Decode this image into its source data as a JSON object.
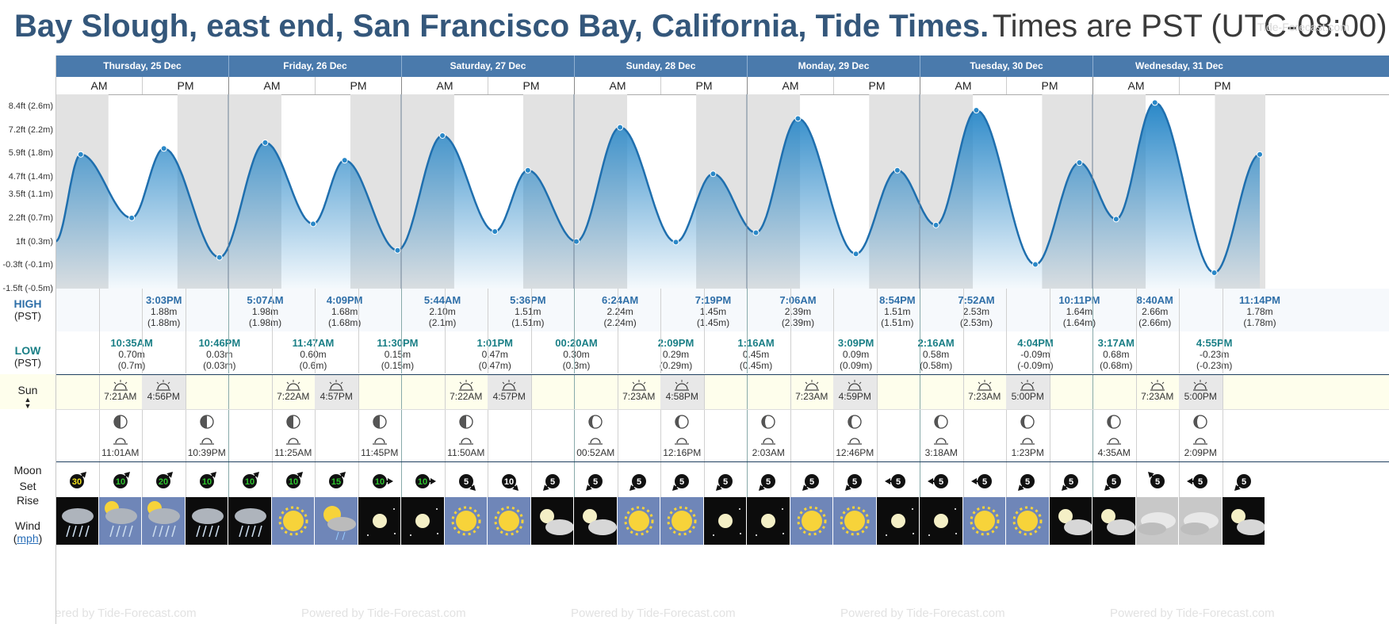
{
  "header": {
    "location_title": "Bay Slough, east end, San Francisco Bay, California, Tide Times.",
    "timezone_note": "Times are PST (UTC-08:00)",
    "watermark": "Tide-Forecast.com"
  },
  "y_axis_labels": [
    "8.4ft (2.6m)",
    "7.2ft (2.2m)",
    "5.9ft (1.8m)",
    "4.7ft (1.4m)",
    "3.5ft (1.1m)",
    "2.2ft (0.7m)",
    "1ft (0.3m)",
    "-0.3ft (-0.1m)",
    "-1.5ft (-0.5m)"
  ],
  "days": [
    {
      "name": "Thursday, 25 Dec",
      "am": "AM",
      "pm": "PM"
    },
    {
      "name": "Friday, 26 Dec",
      "am": "AM",
      "pm": "PM"
    },
    {
      "name": "Saturday, 27 Dec",
      "am": "AM",
      "pm": "PM"
    },
    {
      "name": "Sunday, 28 Dec",
      "am": "AM",
      "pm": "PM"
    },
    {
      "name": "Monday, 29 Dec",
      "am": "AM",
      "pm": "PM"
    },
    {
      "name": "Tuesday, 30 Dec",
      "am": "AM",
      "pm": "PM"
    },
    {
      "name": "Wednesday, 31 Dec",
      "am": "AM",
      "pm": "PM"
    }
  ],
  "labels": {
    "high": "HIGH",
    "high_tz": "(PST)",
    "low": "LOW",
    "low_tz": "(PST)",
    "sun": "Sun",
    "moon": "Moon",
    "set": "Set",
    "rise": "Rise",
    "wind": "Wind",
    "wind_unit": "mph"
  },
  "chart_data": {
    "type": "area",
    "ylabel_units": "ft",
    "ylim_m": [
      -0.5,
      2.8
    ],
    "tides_m": [
      {
        "t": "25 Dec 00:00",
        "h": 0.3
      },
      {
        "t": "25 Dec 03:30",
        "h": 1.78
      },
      {
        "t": "25 Dec 10:35",
        "h": 0.7
      },
      {
        "t": "25 Dec 15:03",
        "h": 1.88
      },
      {
        "t": "25 Dec 22:46",
        "h": 0.03
      },
      {
        "t": "26 Dec 05:07",
        "h": 1.98
      },
      {
        "t": "26 Dec 11:47",
        "h": 0.6
      },
      {
        "t": "26 Dec 16:09",
        "h": 1.68
      },
      {
        "t": "26 Dec 23:30",
        "h": 0.15
      },
      {
        "t": "27 Dec 05:44",
        "h": 2.1
      },
      {
        "t": "27 Dec 13:01",
        "h": 0.47
      },
      {
        "t": "27 Dec 17:36",
        "h": 1.51
      },
      {
        "t": "28 Dec 00:20",
        "h": 0.3
      },
      {
        "t": "28 Dec 06:24",
        "h": 2.24
      },
      {
        "t": "28 Dec 14:09",
        "h": 0.29
      },
      {
        "t": "28 Dec 19:19",
        "h": 1.45
      },
      {
        "t": "29 Dec 01:16",
        "h": 0.45
      },
      {
        "t": "29 Dec 07:06",
        "h": 2.39
      },
      {
        "t": "29 Dec 15:09",
        "h": 0.09
      },
      {
        "t": "29 Dec 20:54",
        "h": 1.51
      },
      {
        "t": "30 Dec 02:16",
        "h": 0.58
      },
      {
        "t": "30 Dec 07:52",
        "h": 2.53
      },
      {
        "t": "30 Dec 16:04",
        "h": -0.09
      },
      {
        "t": "30 Dec 22:11",
        "h": 1.64
      },
      {
        "t": "31 Dec 03:17",
        "h": 0.68
      },
      {
        "t": "31 Dec 08:40",
        "h": 2.66
      },
      {
        "t": "31 Dec 16:55",
        "h": -0.23
      },
      {
        "t": "31 Dec 23:14",
        "h": 1.78
      }
    ]
  },
  "high_tides": [
    {
      "day": 0,
      "time": "3:03PM",
      "m": "1.88m",
      "m2": "(1.88m)",
      "hour": 15.05
    },
    {
      "day": 1,
      "time": "5:07AM",
      "m": "1.98m",
      "m2": "(1.98m)",
      "hour": 5.12
    },
    {
      "day": 1,
      "time": "4:09PM",
      "m": "1.68m",
      "m2": "(1.68m)",
      "hour": 16.15
    },
    {
      "day": 2,
      "time": "5:44AM",
      "m": "2.10m",
      "m2": "(2.1m)",
      "hour": 5.73
    },
    {
      "day": 2,
      "time": "5:36PM",
      "m": "1.51m",
      "m2": "(1.51m)",
      "hour": 17.6
    },
    {
      "day": 3,
      "time": "6:24AM",
      "m": "2.24m",
      "m2": "(2.24m)",
      "hour": 6.4
    },
    {
      "day": 3,
      "time": "7:19PM",
      "m": "1.45m",
      "m2": "(1.45m)",
      "hour": 19.32
    },
    {
      "day": 4,
      "time": "7:06AM",
      "m": "2.39m",
      "m2": "(2.39m)",
      "hour": 7.1
    },
    {
      "day": 4,
      "time": "8:54PM",
      "m": "1.51m",
      "m2": "(1.51m)",
      "hour": 20.9
    },
    {
      "day": 5,
      "time": "7:52AM",
      "m": "2.53m",
      "m2": "(2.53m)",
      "hour": 7.87
    },
    {
      "day": 5,
      "time": "10:11PM",
      "m": "1.64m",
      "m2": "(1.64m)",
      "hour": 22.18
    },
    {
      "day": 6,
      "time": "8:40AM",
      "m": "2.66m",
      "m2": "(2.66m)",
      "hour": 8.67
    },
    {
      "day": 6,
      "time": "11:14PM",
      "m": "1.78m",
      "m2": "(1.78m)",
      "hour": 23.23
    }
  ],
  "low_tides": [
    {
      "day": 0,
      "time": "10:35AM",
      "m": "0.70m",
      "m2": "(0.7m)",
      "hour": 10.58
    },
    {
      "day": 0,
      "time": "10:46PM",
      "m": "0.03m",
      "m2": "(0.03m)",
      "hour": 22.77
    },
    {
      "day": 1,
      "time": "11:47AM",
      "m": "0.60m",
      "m2": "(0.6m)",
      "hour": 11.78
    },
    {
      "day": 1,
      "time": "11:30PM",
      "m": "0.15m",
      "m2": "(0.15m)",
      "hour": 23.5
    },
    {
      "day": 2,
      "time": "1:01PM",
      "m": "0.47m",
      "m2": "(0.47m)",
      "hour": 13.02
    },
    {
      "day": 3,
      "time": "00:20AM",
      "m": "0.30m",
      "m2": "(0.3m)",
      "hour": 0.33
    },
    {
      "day": 3,
      "time": "2:09PM",
      "m": "0.29m",
      "m2": "(0.29m)",
      "hour": 14.15
    },
    {
      "day": 4,
      "time": "1:16AM",
      "m": "0.45m",
      "m2": "(0.45m)",
      "hour": 1.27
    },
    {
      "day": 4,
      "time": "3:09PM",
      "m": "0.09m",
      "m2": "(0.09m)",
      "hour": 15.15
    },
    {
      "day": 5,
      "time": "2:16AM",
      "m": "0.58m",
      "m2": "(0.58m)",
      "hour": 2.27
    },
    {
      "day": 5,
      "time": "4:04PM",
      "m": "-0.09m",
      "m2": "(-0.09m)",
      "hour": 16.07
    },
    {
      "day": 6,
      "time": "3:17AM",
      "m": "0.68m",
      "m2": "(0.68m)",
      "hour": 3.28
    },
    {
      "day": 6,
      "time": "4:55PM",
      "m": "-0.23m",
      "m2": "(-0.23m)",
      "hour": 16.92
    }
  ],
  "sun": [
    {
      "rise": "7:21AM",
      "set": "4:56PM"
    },
    {
      "rise": "7:22AM",
      "set": "4:57PM"
    },
    {
      "rise": "7:22AM",
      "set": "4:57PM"
    },
    {
      "rise": "7:23AM",
      "set": "4:58PM"
    },
    {
      "rise": "7:23AM",
      "set": "4:59PM"
    },
    {
      "rise": "7:23AM",
      "set": "5:00PM"
    },
    {
      "rise": "7:23AM",
      "set": "5:00PM"
    }
  ],
  "moon": [
    {
      "day": 0,
      "slot": 1,
      "time": "11:01AM",
      "kind": "rise",
      "phase": "first-quarter"
    },
    {
      "day": 0,
      "slot": 3,
      "time": "10:39PM",
      "kind": "set",
      "phase": "first-quarter"
    },
    {
      "day": 1,
      "slot": 1,
      "time": "11:25AM",
      "kind": "rise",
      "phase": "first-quarter"
    },
    {
      "day": 1,
      "slot": 3,
      "time": "11:45PM",
      "kind": "set",
      "phase": "first-quarter"
    },
    {
      "day": 2,
      "slot": 1,
      "time": "11:50AM",
      "kind": "rise",
      "phase": "first-quarter"
    },
    {
      "day": 3,
      "slot": 0,
      "time": "00:52AM",
      "kind": "set",
      "phase": "waxing-gibbous"
    },
    {
      "day": 3,
      "slot": 2,
      "time": "12:16PM",
      "kind": "rise",
      "phase": "waxing-gibbous"
    },
    {
      "day": 4,
      "slot": 0,
      "time": "2:03AM",
      "kind": "set",
      "phase": "waxing-gibbous"
    },
    {
      "day": 4,
      "slot": 2,
      "time": "12:46PM",
      "kind": "rise",
      "phase": "waxing-gibbous"
    },
    {
      "day": 5,
      "slot": 0,
      "time": "3:18AM",
      "kind": "set",
      "phase": "waxing-gibbous"
    },
    {
      "day": 5,
      "slot": 2,
      "time": "1:23PM",
      "kind": "rise",
      "phase": "waxing-gibbous"
    },
    {
      "day": 6,
      "slot": 0,
      "time": "4:35AM",
      "kind": "set",
      "phase": "waxing-gibbous"
    },
    {
      "day": 6,
      "slot": 2,
      "time": "2:09PM",
      "kind": "rise",
      "phase": "waxing-gibbous"
    }
  ],
  "wind": [
    {
      "v": "30",
      "dir": "NE",
      "color": "#f3e31c"
    },
    {
      "v": "10",
      "dir": "NE",
      "color": "#2ec42e"
    },
    {
      "v": "20",
      "dir": "NE",
      "color": "#2ec42e"
    },
    {
      "v": "10",
      "dir": "NE",
      "color": "#2ec42e"
    },
    {
      "v": "10",
      "dir": "NE",
      "color": "#2ec42e"
    },
    {
      "v": "10",
      "dir": "NE",
      "color": "#2ec42e"
    },
    {
      "v": "15",
      "dir": "NE",
      "color": "#2ec42e"
    },
    {
      "v": "10",
      "dir": "E",
      "color": "#2ec42e"
    },
    {
      "v": "10",
      "dir": "E",
      "color": "#2ec42e"
    },
    {
      "v": "5",
      "dir": "SE",
      "color": "#ffffff"
    },
    {
      "v": "10",
      "dir": "SE",
      "color": "#ffffff"
    },
    {
      "v": "5",
      "dir": "SW",
      "color": "#ffffff"
    },
    {
      "v": "5",
      "dir": "SW",
      "color": "#ffffff"
    },
    {
      "v": "5",
      "dir": "SW",
      "color": "#ffffff"
    },
    {
      "v": "5",
      "dir": "SW",
      "color": "#ffffff"
    },
    {
      "v": "5",
      "dir": "SW",
      "color": "#ffffff"
    },
    {
      "v": "5",
      "dir": "SW",
      "color": "#ffffff"
    },
    {
      "v": "5",
      "dir": "SW",
      "color": "#ffffff"
    },
    {
      "v": "5",
      "dir": "SW",
      "color": "#ffffff"
    },
    {
      "v": "5",
      "dir": "W",
      "color": "#ffffff"
    },
    {
      "v": "5",
      "dir": "W",
      "color": "#ffffff"
    },
    {
      "v": "5",
      "dir": "W",
      "color": "#ffffff"
    },
    {
      "v": "5",
      "dir": "SW",
      "color": "#ffffff"
    },
    {
      "v": "5",
      "dir": "SW",
      "color": "#ffffff"
    },
    {
      "v": "5",
      "dir": "SW",
      "color": "#ffffff"
    },
    {
      "v": "5",
      "dir": "NW",
      "color": "#ffffff"
    },
    {
      "v": "5",
      "dir": "W",
      "color": "#ffffff"
    },
    {
      "v": "5",
      "dir": "SW",
      "color": "#ffffff"
    }
  ],
  "weather": [
    "rain-night",
    "rain-day",
    "rain-day",
    "rain-night",
    "rain-night",
    "sunny",
    "partly-cloudy-rain",
    "clear-night",
    "clear-night",
    "sunny",
    "sunny",
    "cloudy-night",
    "cloudy-night",
    "sunny",
    "sunny",
    "clear-night",
    "clear-night",
    "sunny",
    "sunny",
    "clear-night",
    "clear-night",
    "sunny",
    "sunny",
    "cloudy-night",
    "cloudy-night",
    "cloudy-day",
    "cloudy-day",
    "cloudy-night"
  ],
  "footer": {
    "text": "Powered by Tide-Forecast.com"
  },
  "colors": {
    "header_blue": "#4a7aac",
    "tide_blue": "#2a88c8",
    "high_text": "#2f6fa8",
    "low_text": "#1a7f86",
    "sun_row": "#fefeec"
  }
}
